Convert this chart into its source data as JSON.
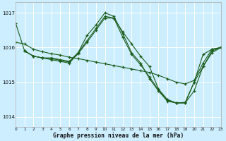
{
  "background_color": "#cceeff",
  "grid_color": "#ffffff",
  "line_color": "#1a5c1a",
  "xlabel": "Graphe pression niveau de la mer (hPa)",
  "ylim": [
    1013.7,
    1017.3
  ],
  "xlim": [
    0,
    23
  ],
  "yticks": [
    1014,
    1015,
    1016,
    1017
  ],
  "xticks": [
    0,
    1,
    2,
    3,
    4,
    5,
    6,
    7,
    8,
    9,
    10,
    11,
    12,
    13,
    14,
    15,
    16,
    17,
    18,
    19,
    20,
    21,
    22,
    23
  ],
  "series": [
    {
      "x": [
        0,
        1,
        2,
        3,
        4,
        5,
        6,
        7,
        8,
        9,
        10,
        11,
        12,
        13,
        14,
        15,
        16,
        17,
        18,
        19,
        20,
        21,
        22,
        23
      ],
      "y": [
        1016.15,
        1016.1,
        1015.95,
        1015.88,
        1015.82,
        1015.78,
        1015.72,
        1015.68,
        1015.63,
        1015.58,
        1015.53,
        1015.48,
        1015.43,
        1015.38,
        1015.33,
        1015.28,
        1015.2,
        1015.1,
        1015.0,
        1014.95,
        1015.05,
        1015.55,
        1015.95,
        1016.0
      ]
    },
    {
      "x": [
        0,
        1,
        2,
        3,
        4,
        5,
        6,
        7,
        8,
        9,
        10,
        11,
        12,
        13,
        14,
        15,
        16,
        17,
        18,
        19,
        20,
        21,
        22,
        23
      ],
      "y": [
        1016.7,
        1015.9,
        1015.75,
        1015.7,
        1015.7,
        1015.65,
        1015.6,
        1015.85,
        1016.35,
        1016.65,
        1017.0,
        1016.9,
        1016.4,
        1015.85,
        1015.55,
        1015.1,
        1014.75,
        1014.45,
        1014.4,
        1014.4,
        1015.0,
        1015.8,
        1015.95,
        1016.0
      ]
    },
    {
      "x": [
        1,
        2,
        3,
        4,
        5,
        6,
        7,
        8,
        9,
        10,
        11,
        12,
        13,
        14,
        15,
        16,
        17,
        18,
        19,
        20,
        21,
        22,
        23
      ],
      "y": [
        1015.9,
        1015.75,
        1015.7,
        1015.68,
        1015.63,
        1015.58,
        1015.85,
        1016.2,
        1016.55,
        1016.9,
        1016.85,
        1016.45,
        1016.1,
        1015.75,
        1015.45,
        1014.8,
        1014.5,
        1014.4,
        1014.4,
        1014.75,
        1015.45,
        1015.85,
        1016.0
      ]
    },
    {
      "x": [
        1,
        2,
        3,
        4,
        5,
        6,
        7,
        8,
        9,
        10,
        11,
        12,
        13,
        14,
        15,
        16,
        17,
        18,
        19,
        20,
        21,
        22,
        23
      ],
      "y": [
        1015.9,
        1015.75,
        1015.7,
        1015.65,
        1015.6,
        1015.55,
        1015.82,
        1016.15,
        1016.5,
        1016.85,
        1016.85,
        1016.3,
        1015.8,
        1015.5,
        1015.15,
        1014.78,
        1014.48,
        1014.4,
        1014.42,
        1015.0,
        1015.45,
        1015.9,
        1016.0
      ]
    }
  ]
}
